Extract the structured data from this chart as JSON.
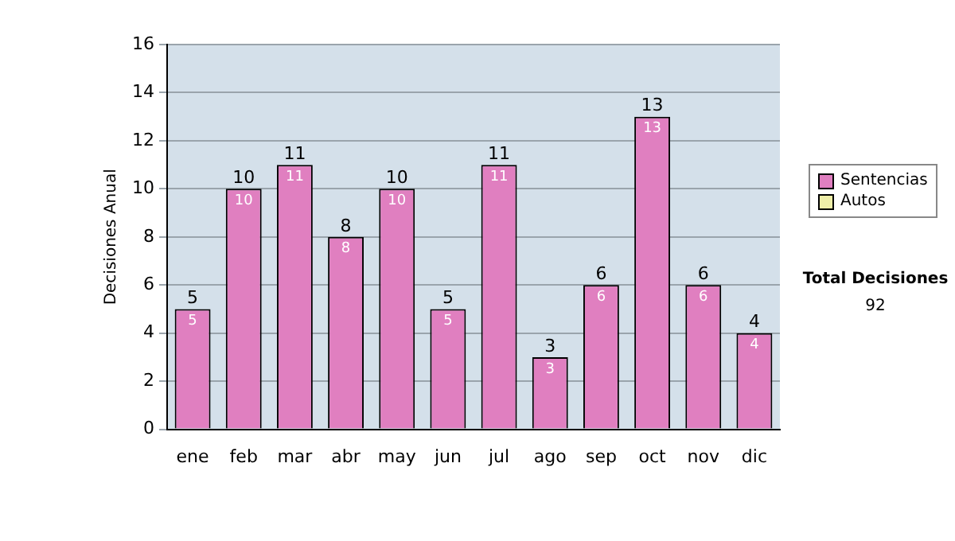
{
  "chart_data": {
    "type": "bar",
    "stacked": true,
    "ylabel": "Decisiones Anual",
    "categories": [
      "ene",
      "feb",
      "mar",
      "abr",
      "may",
      "jun",
      "jul",
      "ago",
      "sep",
      "oct",
      "nov",
      "dic"
    ],
    "series": [
      {
        "name": "Sentencias",
        "color": "#e07fc0",
        "values": [
          5,
          10,
          11,
          8,
          10,
          5,
          11,
          3,
          6,
          13,
          6,
          4
        ],
        "value_labels": [
          "5",
          "10",
          "11",
          "8",
          "10",
          "5",
          "11",
          "3",
          "6",
          "13",
          "6",
          "4"
        ]
      },
      {
        "name": "Autos",
        "color": "#eeeea8",
        "values": [
          0,
          0,
          0,
          0,
          0,
          0,
          0,
          0,
          0,
          0,
          0,
          0
        ]
      }
    ],
    "ylim": [
      0,
      16
    ],
    "yticks": [
      0,
      2,
      4,
      6,
      8,
      10,
      12,
      14,
      16
    ],
    "grid": "y",
    "legend": "right",
    "totals": [
      "5",
      "10",
      "11",
      "8",
      "10",
      "5",
      "11",
      "3",
      "6",
      "13",
      "6",
      "4"
    ],
    "annotations": [
      "Total Decisiones",
      "92"
    ]
  }
}
